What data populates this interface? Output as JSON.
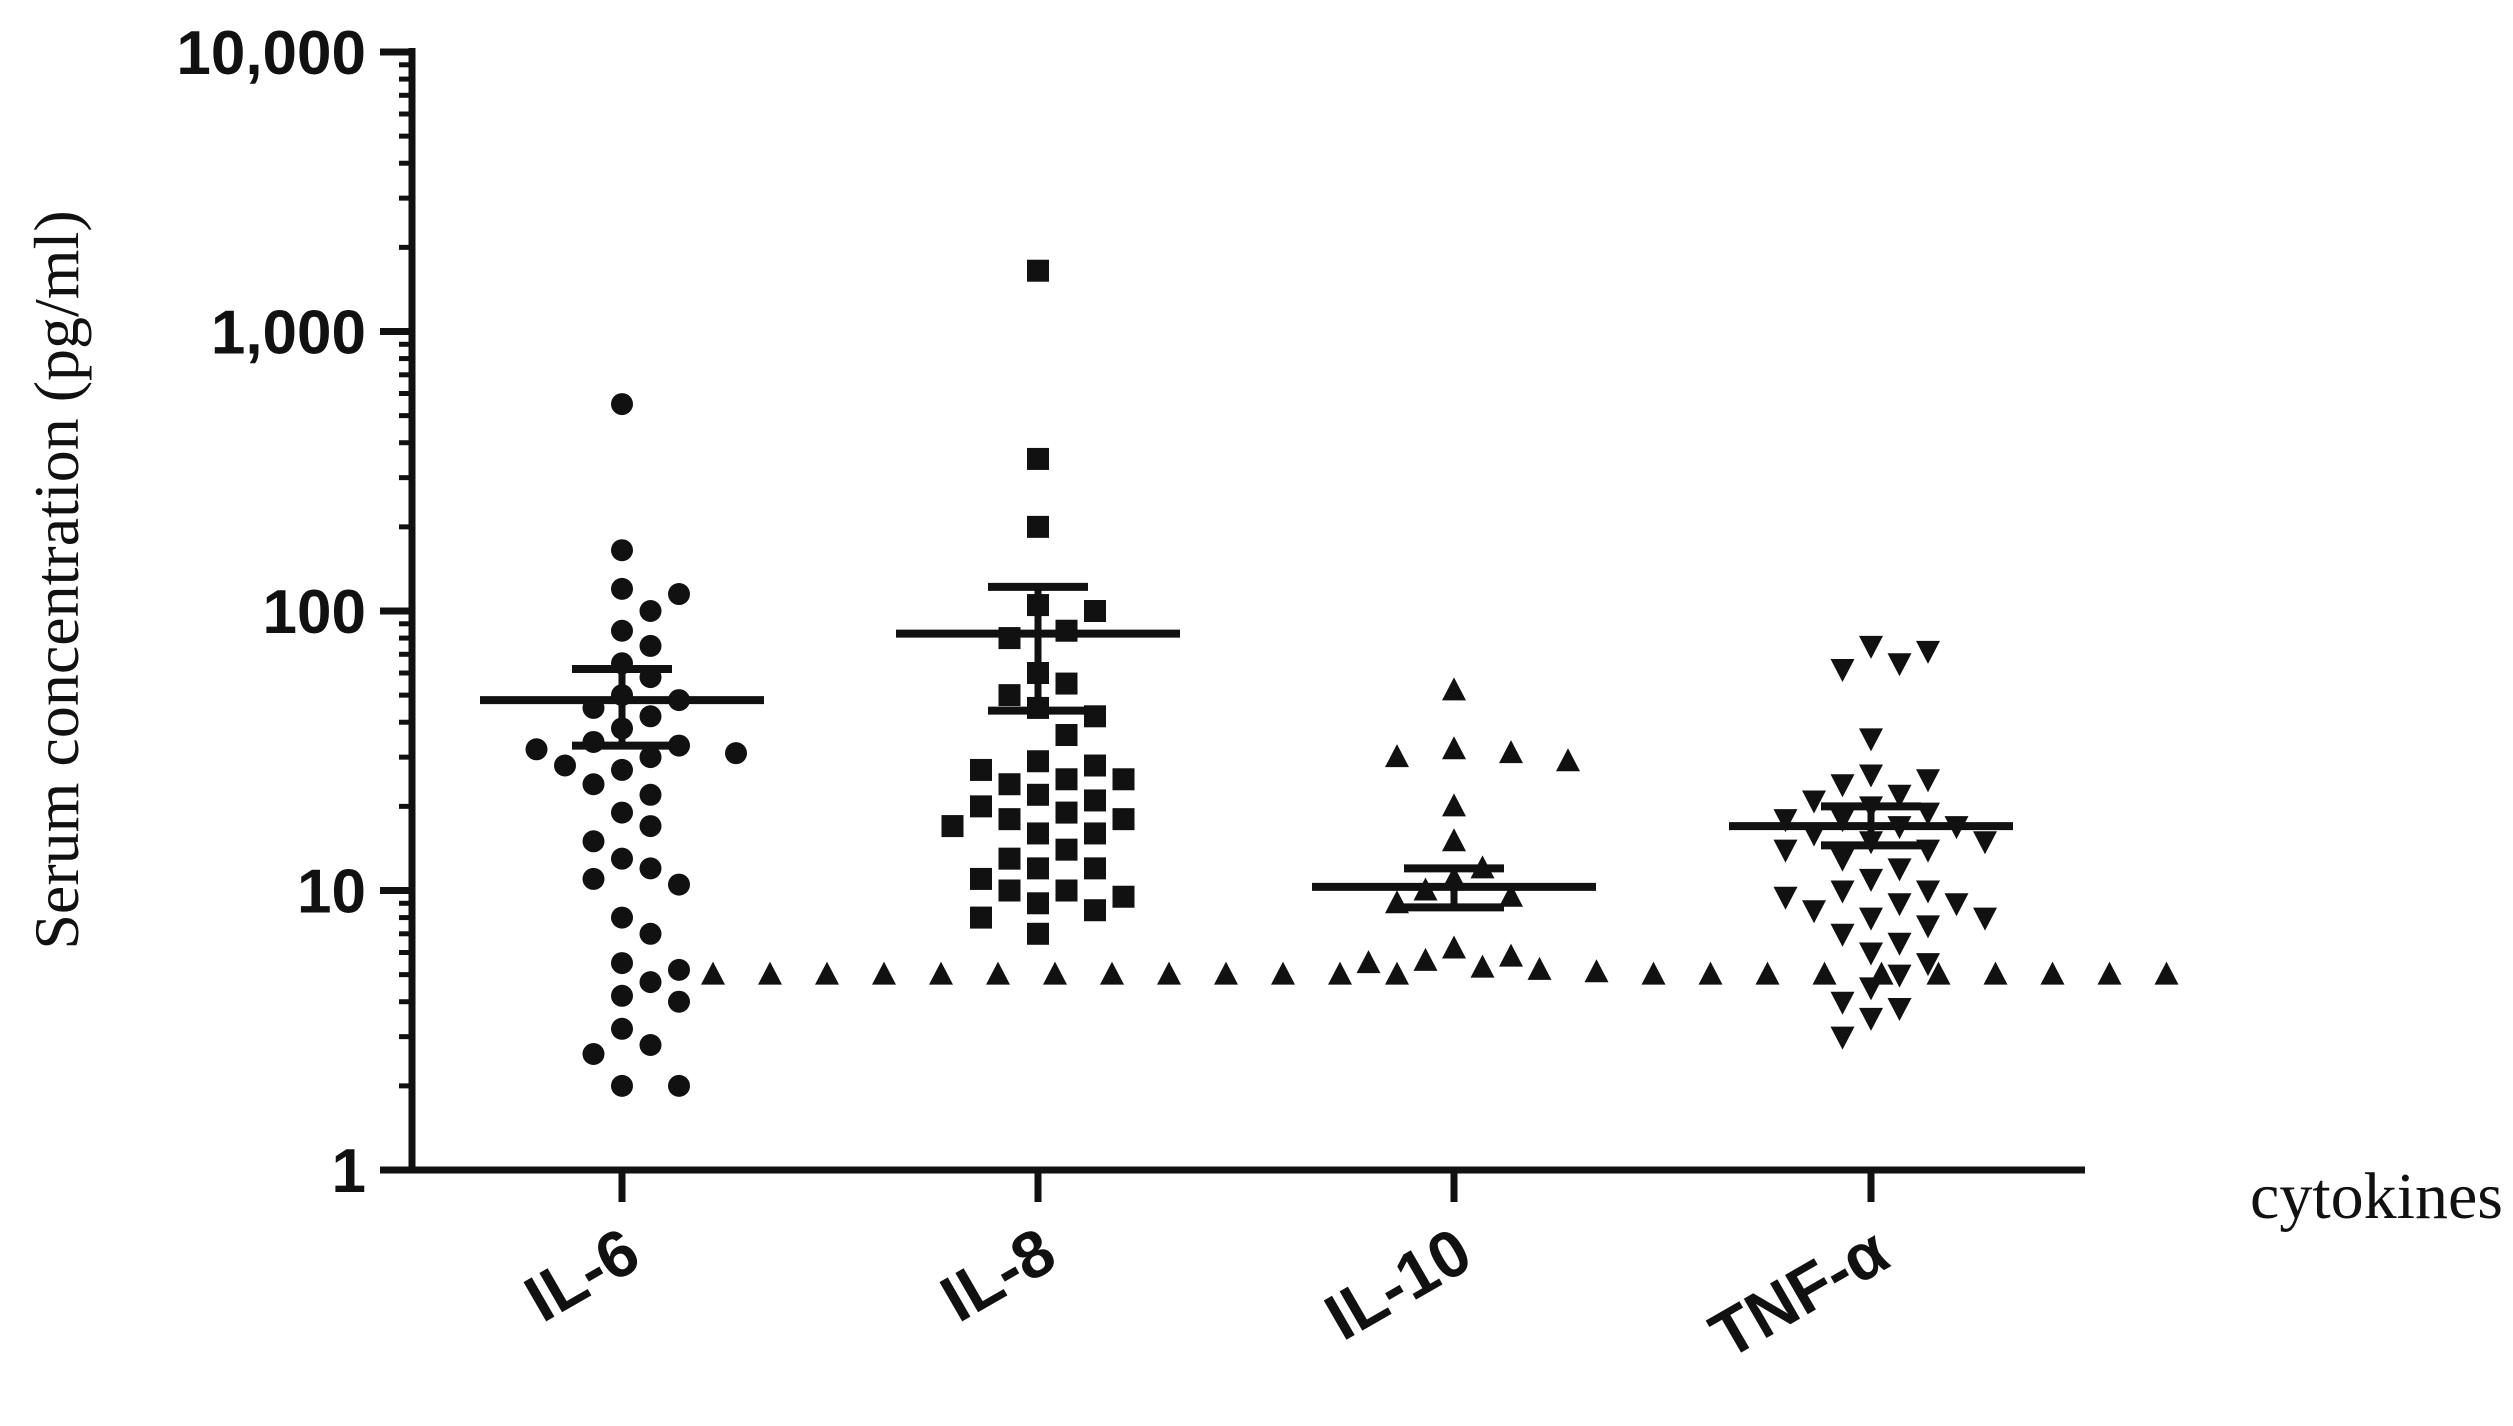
{
  "chart_data": {
    "type": "scatter",
    "ylabel": "Serum concentration (pg/ml)",
    "xlabel": "cytokines",
    "yscale": "log",
    "ylim": [
      1,
      10000
    ],
    "yticks": [
      {
        "value": 1,
        "label": "1"
      },
      {
        "value": 10,
        "label": "10"
      },
      {
        "value": 100,
        "label": "100"
      },
      {
        "value": 1000,
        "label": "1,000"
      },
      {
        "value": 10000,
        "label": "10,000"
      }
    ],
    "categories": [
      "IL-6",
      "IL-8",
      "IL-10",
      "TNF-α"
    ],
    "grid": false,
    "color": "#111111",
    "series": [
      {
        "category": "IL-6",
        "marker": "circle",
        "mean": 48,
        "sem_low": 33,
        "sem_high": 62,
        "values": [
          550,
          165,
          120,
          115,
          100,
          85,
          75,
          65,
          58,
          50,
          48,
          45,
          42,
          38,
          34,
          33,
          32,
          31,
          30,
          28,
          27,
          24,
          22,
          19,
          17,
          15,
          13,
          12,
          11,
          10.5,
          8,
          7,
          5.5,
          5.2,
          4.7,
          4.2,
          4.0,
          3.2,
          2.8,
          2.6,
          2.0,
          2.0
        ]
      },
      {
        "category": "IL-8",
        "marker": "square",
        "mean": 83,
        "sem_low": 44,
        "sem_high": 122,
        "values": [
          1650,
          350,
          200,
          105,
          100,
          85,
          80,
          60,
          55,
          50,
          45,
          42,
          36,
          29,
          28,
          27,
          25,
          25,
          24,
          22,
          21,
          20,
          19,
          18,
          18,
          17,
          16,
          16,
          14,
          13,
          12,
          12,
          11,
          10,
          10,
          9.5,
          9,
          8.5,
          8,
          7
        ]
      },
      {
        "category": "IL-10",
        "marker": "triangle-up",
        "mean": 10.3,
        "sem_low": 8.7,
        "sem_high": 12,
        "values": [
          52,
          32,
          31,
          30,
          29,
          20,
          15,
          12,
          11,
          10,
          9.5,
          9,
          6.2,
          5.8,
          5.6,
          5.5,
          5.3,
          5.2,
          5.1,
          5.0,
          5.0,
          5.0,
          5.0,
          5.0,
          5.0,
          5.0,
          5.0,
          5.0,
          5.0,
          5.0,
          5.0,
          5.0,
          5.0,
          5.0,
          5.0,
          5.0,
          5.0,
          5.0,
          5.0,
          5.0,
          5.0,
          5.0
        ]
      },
      {
        "category": "TNF-α",
        "marker": "triangle-down",
        "mean": 17,
        "sem_low": 14.5,
        "sem_high": 20,
        "values": [
          75,
          72,
          65,
          62,
          35,
          26,
          25,
          24,
          22,
          21,
          20,
          19,
          18,
          18,
          17,
          17,
          16,
          15,
          15,
          14,
          14,
          13,
          12,
          11,
          10,
          10,
          9.5,
          9,
          9,
          8.5,
          8,
          8,
          7.5,
          7,
          6.5,
          6,
          5.5,
          5,
          4.5,
          4,
          3.8,
          3.5,
          3.0
        ]
      }
    ]
  }
}
